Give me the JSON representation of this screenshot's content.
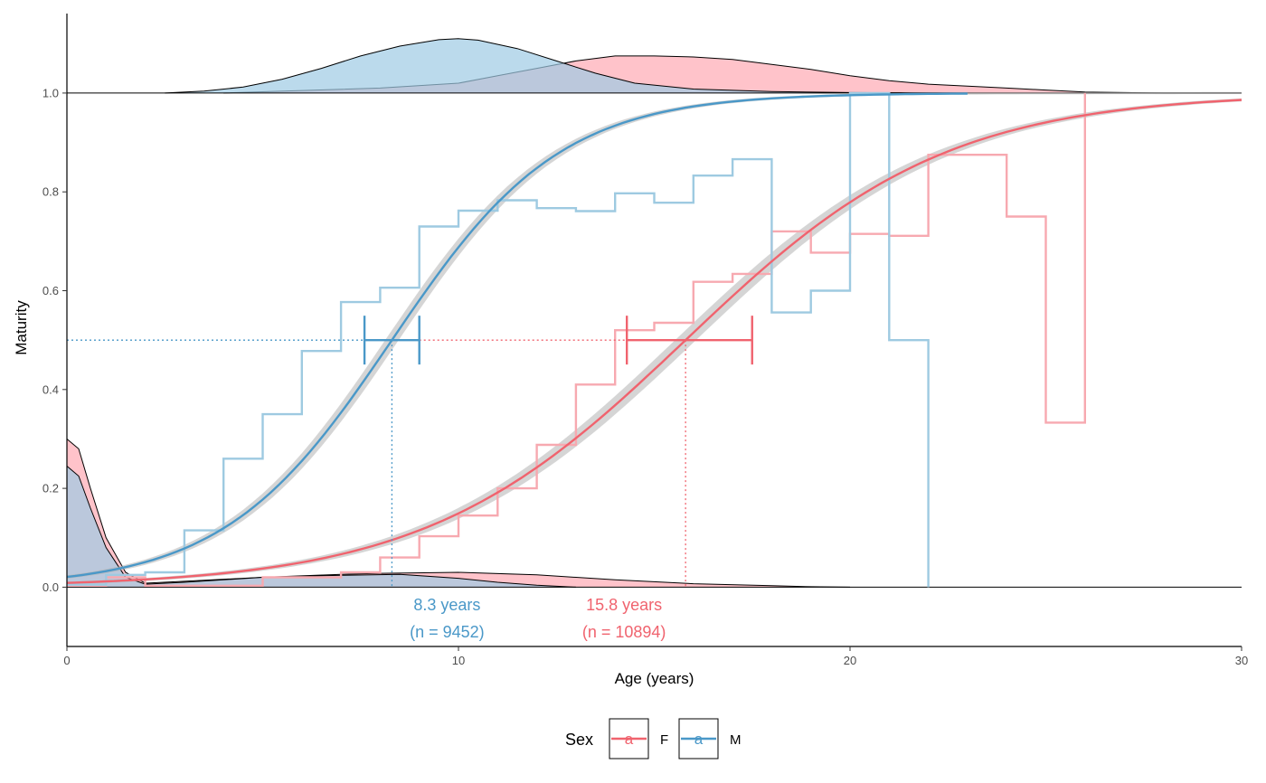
{
  "chart_data": {
    "type": "line",
    "xlabel": "Age (years)",
    "ylabel": "Maturity",
    "xlim": [
      0,
      30
    ],
    "ylim": [
      -0.12,
      1.17
    ],
    "xticks": [
      0,
      10,
      20,
      30
    ],
    "xtick_labels": [
      "0",
      "10",
      "20",
      "30"
    ],
    "yticks": [
      0,
      0.2,
      0.4,
      0.6,
      0.8,
      1.0
    ],
    "ytick_labels": [
      "0.0",
      "0.2",
      "0.4",
      "0.6",
      "0.8",
      "1.0"
    ],
    "grid": false,
    "legend": {
      "title": "Sex",
      "placement": "bottom",
      "entries": [
        {
          "label": "F",
          "key_glyph": "a",
          "color": "#f0636e"
        },
        {
          "label": "M",
          "key_glyph": "a",
          "color": "#4a98c8"
        }
      ]
    },
    "series": [
      {
        "name": "F",
        "color": "#f0636e",
        "step_color": "#f7a9b0",
        "fill_color": "#ffaab3",
        "a50": 15.8,
        "a50_ci": [
          14.3,
          17.5
        ],
        "logistic_k": 0.3,
        "step_x": [
          0,
          1,
          2,
          5,
          7,
          8,
          9,
          10,
          11,
          12,
          13,
          14,
          15,
          16,
          17,
          18,
          19,
          20,
          21,
          22,
          24,
          25,
          26
        ],
        "step_y": [
          0.003,
          0.02,
          0.003,
          0.02,
          0.03,
          0.06,
          0.103,
          0.145,
          0.2,
          0.288,
          0.41,
          0.52,
          0.535,
          0.618,
          0.634,
          0.72,
          0.677,
          0.715,
          0.711,
          0.875,
          0.75,
          0.333,
          1.0
        ],
        "step_end": 26,
        "top_density": {
          "base": 1.0,
          "x": [
            4,
            8,
            10,
            11,
            12,
            13,
            14,
            15,
            16,
            17,
            18,
            19,
            20,
            21,
            22,
            23,
            24,
            25,
            26,
            28,
            30
          ],
          "y": [
            1.0,
            1.01,
            1.02,
            1.035,
            1.05,
            1.065,
            1.075,
            1.075,
            1.073,
            1.068,
            1.058,
            1.048,
            1.035,
            1.025,
            1.018,
            1.014,
            1.01,
            1.006,
            1.002,
            1.0,
            1.0
          ]
        },
        "bottom_density": {
          "base": 0.0,
          "x": [
            0,
            0.3,
            0.6,
            1,
            1.5,
            2,
            3,
            5,
            7,
            8,
            10,
            12,
            14,
            16,
            18,
            19,
            20
          ],
          "y": [
            0.3,
            0.28,
            0.2,
            0.1,
            0.03,
            0.008,
            0.012,
            0.02,
            0.026,
            0.028,
            0.03,
            0.025,
            0.015,
            0.007,
            0.003,
            0.001,
            0.0
          ]
        },
        "annotation_value": "15.8 years",
        "annotation_n": "(n = 10894)"
      },
      {
        "name": "M",
        "color": "#4a98c8",
        "step_color": "#9ecae1",
        "fill_color": "#9ecbe4",
        "a50": 8.3,
        "a50_ci": [
          7.6,
          9.0
        ],
        "logistic_k": 0.465,
        "step_x": [
          0,
          1,
          2,
          3,
          4,
          5,
          6,
          7,
          8,
          9,
          10,
          11,
          12,
          13,
          14,
          15,
          16,
          17,
          18,
          19,
          20,
          21,
          22
        ],
        "step_y": [
          0.005,
          0.025,
          0.03,
          0.115,
          0.26,
          0.35,
          0.478,
          0.577,
          0.606,
          0.73,
          0.762,
          0.783,
          0.767,
          0.761,
          0.797,
          0.778,
          0.833,
          0.866,
          0.556,
          0.6,
          1.0,
          0.5,
          0.0
        ],
        "step_end": 22,
        "top_density": {
          "base": 1.0,
          "x": [
            2.5,
            3.5,
            4.5,
            5.5,
            6.5,
            7.5,
            8.5,
            9.5,
            10,
            10.5,
            11.5,
            12.5,
            13.5,
            14.5,
            16,
            18,
            20,
            23
          ],
          "y": [
            1.0,
            1.004,
            1.012,
            1.028,
            1.05,
            1.075,
            1.095,
            1.108,
            1.11,
            1.107,
            1.09,
            1.065,
            1.04,
            1.02,
            1.008,
            1.003,
            1.001,
            1.0
          ]
        },
        "bottom_density": {
          "base": 0.0,
          "x": [
            0,
            0.3,
            0.6,
            1,
            1.5,
            2,
            3,
            5,
            7,
            8.5,
            10,
            11,
            12,
            13
          ],
          "y": [
            0.245,
            0.225,
            0.16,
            0.08,
            0.02,
            0.006,
            0.01,
            0.02,
            0.024,
            0.026,
            0.018,
            0.01,
            0.004,
            0.0
          ]
        },
        "annotation_value": "8.3 years",
        "annotation_n": "(n = 9452)"
      }
    ]
  }
}
